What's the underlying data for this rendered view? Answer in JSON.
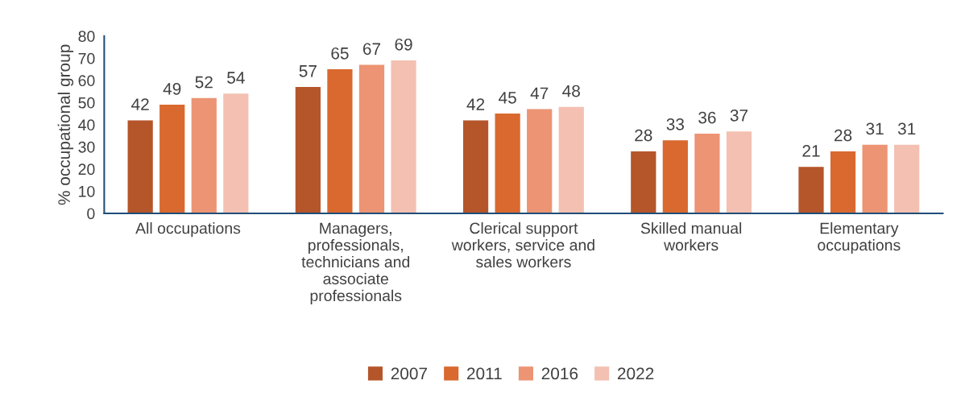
{
  "chart_data": {
    "type": "bar",
    "ylabel": "% occupational group",
    "categories": [
      "All occupations",
      "Managers,\nprofessionals,\ntechnicians and\nassociate\nprofessionals",
      "Clerical support\nworkers, service and\nsales workers",
      "Skilled manual\nworkers",
      "Elementary\noccupations"
    ],
    "series": [
      {
        "name": "2007",
        "color": "#b5552a",
        "values": [
          42,
          57,
          42,
          28,
          21
        ]
      },
      {
        "name": "2011",
        "color": "#d9692f",
        "values": [
          49,
          65,
          45,
          33,
          28
        ]
      },
      {
        "name": "2016",
        "color": "#ec9474",
        "values": [
          52,
          67,
          47,
          36,
          31
        ]
      },
      {
        "name": "2022",
        "color": "#f4c0b1",
        "values": [
          54,
          69,
          48,
          37,
          31
        ]
      }
    ],
    "ylim": [
      0,
      80
    ],
    "yticks": [
      0,
      10,
      20,
      30,
      40,
      50,
      60,
      70,
      80
    ],
    "data_labels": true,
    "grid": false,
    "legend": "bottom"
  }
}
